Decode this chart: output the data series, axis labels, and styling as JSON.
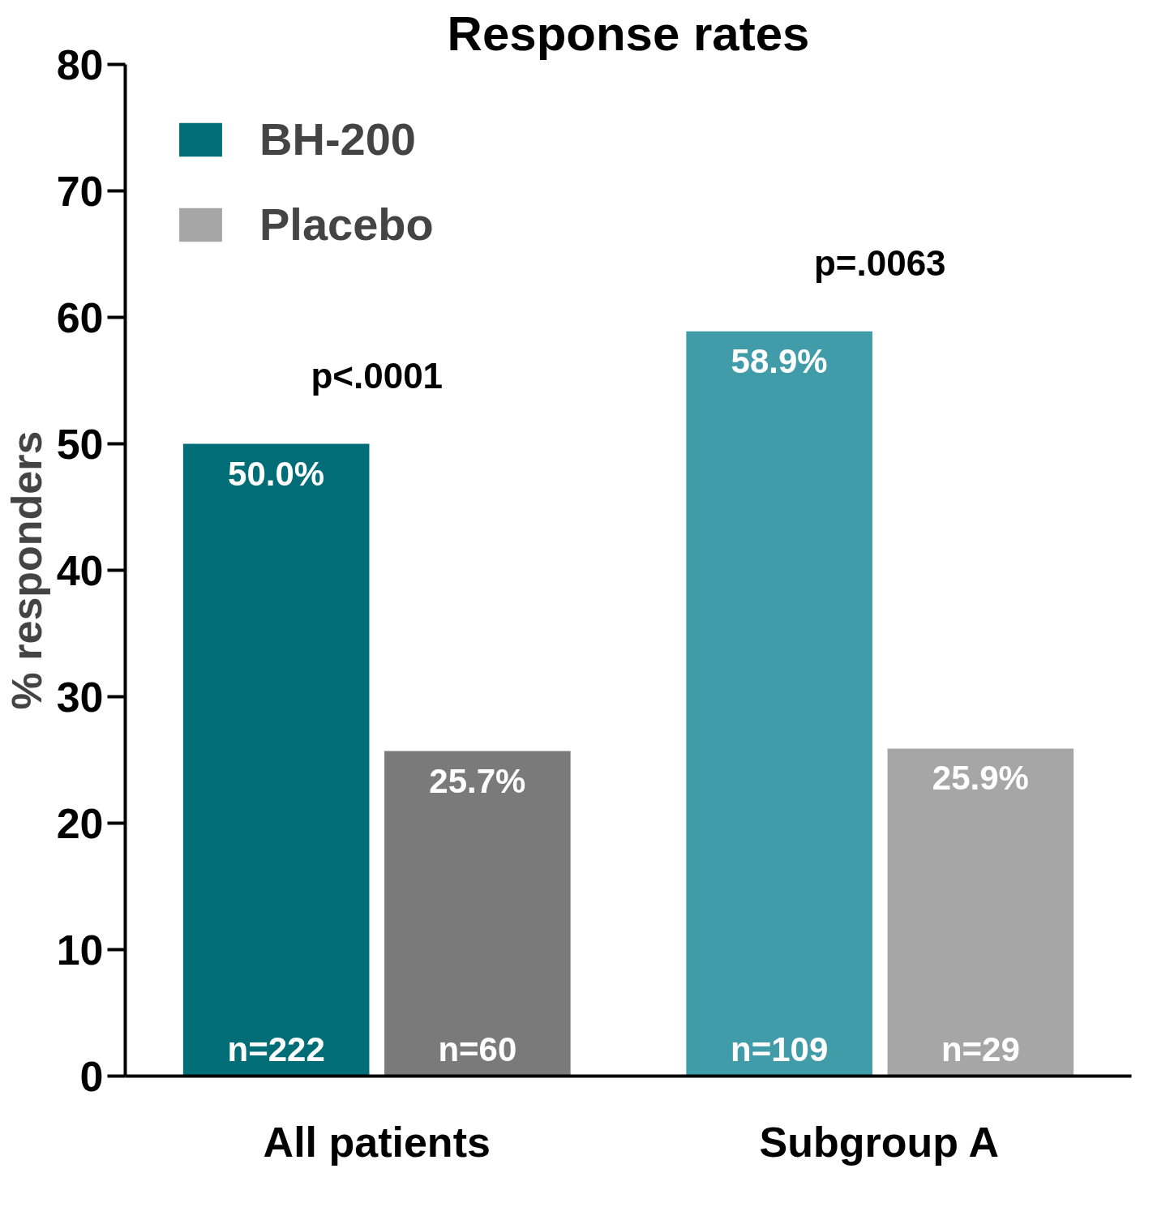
{
  "chart_data": {
    "type": "bar",
    "title": "Response rates",
    "ylabel": "% responders",
    "categories": [
      "All patients",
      "Subgroup A"
    ],
    "series": [
      {
        "name": "BH-200",
        "color": "#006d77",
        "colors": [
          "#006d77",
          "#409ca9"
        ],
        "values": [
          50.0,
          58.9
        ],
        "value_labels": [
          "50.0%",
          "58.9%"
        ]
      },
      {
        "name": "Placebo",
        "color": "#a6a6a6",
        "colors": [
          "#7a7a7a",
          "#a6a6a6"
        ],
        "values": [
          25.7,
          25.9
        ],
        "value_labels": [
          "25.7%",
          "25.9%"
        ]
      }
    ],
    "ylim": [
      0,
      80
    ],
    "yticks": [
      0,
      10,
      20,
      30,
      40,
      50,
      60,
      70,
      80
    ],
    "grid": false,
    "legend": "top left",
    "annotations": [
      "p<.0001",
      "p=.0063",
      "n=222",
      "n=109",
      "n=60",
      "n=29"
    ]
  }
}
